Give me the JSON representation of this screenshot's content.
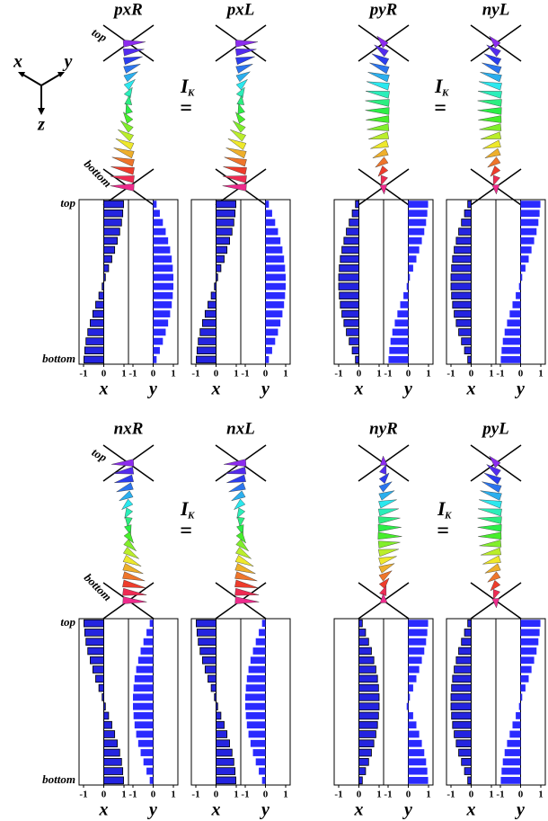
{
  "figure": {
    "axes_triad": [
      "x",
      "y",
      "z"
    ],
    "equivalences": [
      {
        "symbol": "I",
        "subscript": "K",
        "relation": "="
      },
      {
        "symbol": "I",
        "subscript": "K",
        "relation": "="
      },
      {
        "symbol": "I",
        "subscript": "K",
        "relation": "="
      },
      {
        "symbol": "I",
        "subscript": "K",
        "relation": "="
      }
    ]
  },
  "chart_data": [
    {
      "type": "bar",
      "orientation": "horizontal",
      "title": "pxR",
      "spin_labels": [
        "top",
        "bottom"
      ],
      "categories": [
        "top",
        null,
        null,
        null,
        null,
        null,
        null,
        null,
        null,
        null,
        null,
        null,
        null,
        null,
        null,
        null,
        null,
        "bottom"
      ],
      "series": [
        {
          "name": "x",
          "color": "#2424e0",
          "edgecolor": "#000000",
          "values": [
            0.98,
            0.94,
            0.88,
            0.79,
            0.67,
            0.54,
            0.4,
            0.24,
            0.08,
            -0.08,
            -0.24,
            -0.4,
            -0.54,
            -0.67,
            -0.79,
            -0.88,
            -0.94,
            -0.98
          ]
        },
        {
          "name": "y",
          "color": "#2a2aff",
          "values": [
            0.17,
            0.33,
            0.48,
            0.62,
            0.74,
            0.84,
            0.92,
            0.97,
            1,
            1,
            0.97,
            0.92,
            0.84,
            0.74,
            0.62,
            0.48,
            0.33,
            0.17
          ]
        }
      ],
      "xlim": [
        -1,
        1
      ],
      "xticks": [
        -1,
        0,
        1
      ]
    },
    {
      "type": "bar",
      "orientation": "horizontal",
      "title": "pxL",
      "categories": [
        null,
        null,
        null,
        null,
        null,
        null,
        null,
        null,
        null,
        null,
        null,
        null,
        null,
        null,
        null,
        null,
        null,
        null
      ],
      "series": [
        {
          "name": "x",
          "color": "#2424e0",
          "edgecolor": "#000000",
          "values": [
            0.98,
            0.94,
            0.88,
            0.79,
            0.67,
            0.54,
            0.4,
            0.24,
            0.08,
            -0.08,
            -0.24,
            -0.4,
            -0.54,
            -0.67,
            -0.79,
            -0.88,
            -0.94,
            -0.98
          ]
        },
        {
          "name": "y",
          "color": "#2a2aff",
          "values": [
            0.17,
            0.33,
            0.48,
            0.62,
            0.74,
            0.84,
            0.92,
            0.97,
            1,
            1,
            0.97,
            0.92,
            0.84,
            0.74,
            0.62,
            0.48,
            0.33,
            0.17
          ]
        }
      ],
      "xlim": [
        -1,
        1
      ],
      "xticks": [
        -1,
        0,
        1
      ]
    },
    {
      "type": "bar",
      "orientation": "horizontal",
      "title": "pyR",
      "categories": [
        null,
        null,
        null,
        null,
        null,
        null,
        null,
        null,
        null,
        null,
        null,
        null,
        null,
        null,
        null,
        null,
        null,
        null
      ],
      "series": [
        {
          "name": "x",
          "color": "#2424e0",
          "edgecolor": "#000000",
          "values": [
            -0.17,
            -0.33,
            -0.48,
            -0.62,
            -0.74,
            -0.84,
            -0.92,
            -0.97,
            -1,
            -1,
            -0.97,
            -0.92,
            -0.84,
            -0.74,
            -0.62,
            -0.48,
            -0.33,
            -0.17
          ]
        },
        {
          "name": "y",
          "color": "#2a2aff",
          "values": [
            0.98,
            0.94,
            0.88,
            0.79,
            0.67,
            0.54,
            0.4,
            0.24,
            0.08,
            -0.08,
            -0.24,
            -0.4,
            -0.54,
            -0.67,
            -0.79,
            -0.88,
            -0.94,
            -0.98
          ]
        }
      ],
      "xlim": [
        -1,
        1
      ],
      "xticks": [
        -1,
        0,
        1
      ]
    },
    {
      "type": "bar",
      "orientation": "horizontal",
      "title": "nyL",
      "categories": [
        null,
        null,
        null,
        null,
        null,
        null,
        null,
        null,
        null,
        null,
        null,
        null,
        null,
        null,
        null,
        null,
        null,
        null
      ],
      "series": [
        {
          "name": "x",
          "color": "#2424e0",
          "edgecolor": "#000000",
          "values": [
            -0.17,
            -0.33,
            -0.48,
            -0.62,
            -0.74,
            -0.84,
            -0.92,
            -0.97,
            -1,
            -1,
            -0.97,
            -0.92,
            -0.84,
            -0.74,
            -0.62,
            -0.48,
            -0.33,
            -0.17
          ]
        },
        {
          "name": "y",
          "color": "#2a2aff",
          "values": [
            0.98,
            0.94,
            0.88,
            0.79,
            0.67,
            0.54,
            0.4,
            0.24,
            0.08,
            -0.08,
            -0.24,
            -0.4,
            -0.54,
            -0.67,
            -0.79,
            -0.88,
            -0.94,
            -0.98
          ]
        }
      ],
      "xlim": [
        -1,
        1
      ],
      "xticks": [
        -1,
        0,
        1
      ]
    },
    {
      "type": "bar",
      "orientation": "horizontal",
      "title": "nxR",
      "spin_labels": [
        "top",
        "bottom"
      ],
      "categories": [
        "top",
        null,
        null,
        null,
        null,
        null,
        null,
        null,
        null,
        null,
        null,
        null,
        null,
        null,
        null,
        null,
        null,
        "bottom"
      ],
      "series": [
        {
          "name": "x",
          "color": "#2424e0",
          "edgecolor": "#000000",
          "values": [
            -0.98,
            -0.94,
            -0.88,
            -0.79,
            -0.67,
            -0.54,
            -0.4,
            -0.24,
            -0.08,
            0.08,
            0.24,
            0.4,
            0.54,
            0.67,
            0.79,
            0.88,
            0.94,
            0.98
          ]
        },
        {
          "name": "y",
          "color": "#2a2aff",
          "values": [
            -0.17,
            -0.33,
            -0.48,
            -0.62,
            -0.74,
            -0.84,
            -0.92,
            -0.97,
            -1,
            -1,
            -0.97,
            -0.92,
            -0.84,
            -0.74,
            -0.62,
            -0.48,
            -0.33,
            -0.17
          ]
        }
      ],
      "xlim": [
        -1,
        1
      ],
      "xticks": [
        -1,
        0,
        1
      ]
    },
    {
      "type": "bar",
      "orientation": "horizontal",
      "title": "nxL",
      "categories": [
        null,
        null,
        null,
        null,
        null,
        null,
        null,
        null,
        null,
        null,
        null,
        null,
        null,
        null,
        null,
        null,
        null,
        null
      ],
      "series": [
        {
          "name": "x",
          "color": "#2424e0",
          "edgecolor": "#000000",
          "values": [
            -0.98,
            -0.94,
            -0.88,
            -0.79,
            -0.67,
            -0.54,
            -0.4,
            -0.24,
            -0.08,
            0.08,
            0.24,
            0.4,
            0.54,
            0.67,
            0.79,
            0.88,
            0.94,
            0.98
          ]
        },
        {
          "name": "y",
          "color": "#2a2aff",
          "values": [
            -0.17,
            -0.33,
            -0.48,
            -0.62,
            -0.74,
            -0.84,
            -0.92,
            -0.97,
            -1,
            -1,
            -0.97,
            -0.92,
            -0.84,
            -0.74,
            -0.62,
            -0.48,
            -0.33,
            -0.17
          ]
        }
      ],
      "xlim": [
        -1,
        1
      ],
      "xticks": [
        -1,
        0,
        1
      ]
    },
    {
      "type": "bar",
      "orientation": "horizontal",
      "title": "nyR",
      "categories": [
        null,
        null,
        null,
        null,
        null,
        null,
        null,
        null,
        null,
        null,
        null,
        null,
        null,
        null,
        null,
        null,
        null,
        null
      ],
      "series": [
        {
          "name": "x",
          "color": "#2424e0",
          "edgecolor": "#000000",
          "values": [
            0.17,
            0.33,
            0.48,
            0.62,
            0.74,
            0.84,
            0.92,
            0.97,
            1,
            1,
            0.97,
            0.92,
            0.84,
            0.74,
            0.62,
            0.48,
            0.33,
            0.17
          ]
        },
        {
          "name": "y",
          "color": "#2a2aff",
          "values": [
            0.98,
            0.94,
            0.88,
            0.79,
            0.67,
            0.54,
            0.4,
            0.24,
            0.08,
            -0.08,
            0.24,
            0.4,
            0.54,
            0.67,
            0.79,
            0.88,
            0.94,
            0.98
          ]
        }
      ],
      "xlim": [
        -1,
        1
      ],
      "xticks": [
        -1,
        0,
        1
      ]
    },
    {
      "type": "bar",
      "orientation": "horizontal",
      "title": "pyL",
      "categories": [
        null,
        null,
        null,
        null,
        null,
        null,
        null,
        null,
        null,
        null,
        null,
        null,
        null,
        null,
        null,
        null,
        null,
        null
      ],
      "series": [
        {
          "name": "x",
          "color": "#2424e0",
          "edgecolor": "#000000",
          "values": [
            -0.17,
            -0.33,
            -0.48,
            -0.62,
            -0.74,
            -0.84,
            -0.92,
            -0.97,
            -1,
            -1,
            -0.97,
            -0.92,
            -0.84,
            -0.74,
            -0.62,
            -0.48,
            -0.33,
            -0.17
          ]
        },
        {
          "name": "y",
          "color": "#2a2aff",
          "values": [
            0.98,
            0.94,
            0.88,
            0.79,
            0.67,
            0.54,
            0.4,
            0.24,
            0.08,
            -0.08,
            -0.24,
            -0.4,
            -0.54,
            -0.67,
            -0.79,
            -0.88,
            -0.94,
            -0.98
          ]
        }
      ],
      "xlim": [
        -1,
        1
      ],
      "xticks": [
        -1,
        0,
        1
      ]
    }
  ]
}
